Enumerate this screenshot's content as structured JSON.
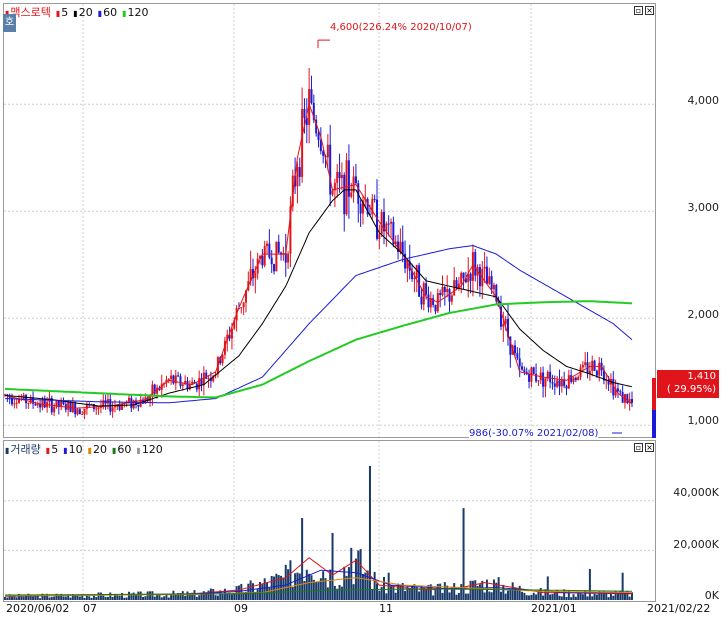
{
  "price_panel": {
    "legend": [
      {
        "label": "맥스로텍",
        "color": "#e0141b"
      },
      {
        "label": "5",
        "color": "#e0141b"
      },
      {
        "label": "20",
        "color": "#000000"
      },
      {
        "label": "60",
        "color": "#1a1ad8"
      },
      {
        "label": "120",
        "color": "#22cc22"
      }
    ],
    "y_ticks": [
      "4,000",
      "3,000",
      "2,000",
      "1,000"
    ],
    "high_annotation": "4,600(226.24% 2020/10/07)",
    "low_annotation": "986(-30.07% 2021/02/08)",
    "current_price": "1,410",
    "current_change": "( 29.95%)",
    "corner_tab": "호"
  },
  "volume_panel": {
    "legend": [
      {
        "label": "거래량",
        "color": "#1a3a6a"
      },
      {
        "label": "5",
        "color": "#e0141b"
      },
      {
        "label": "10",
        "color": "#1a1ad8"
      },
      {
        "label": "20",
        "color": "#e08a00"
      },
      {
        "label": "60",
        "color": "#1a7a1a"
      },
      {
        "label": "120",
        "color": "#9a9a9a"
      }
    ],
    "y_ticks": [
      "40,000K",
      "20,000K",
      "0K"
    ]
  },
  "x_axis": {
    "labels": [
      "2020/06/02",
      "07",
      "09",
      "11",
      "2021/01",
      "2021/02/22"
    ]
  },
  "colors": {
    "up": "#e0141b",
    "down": "#1a1ad8",
    "ma5": "#e0141b",
    "ma20": "#000000",
    "ma60": "#1a1ad8",
    "ma120": "#22cc22",
    "volume": "#1a3a6a"
  },
  "chart_data": {
    "type": "candlestick",
    "ylim": [
      900,
      4900
    ],
    "volume_ylim": [
      0,
      58000
    ],
    "series": [
      {
        "name": "5",
        "keypoints": [
          [
            0,
            1280
          ],
          [
            15,
            1200
          ],
          [
            30,
            1160
          ],
          [
            45,
            1180
          ],
          [
            60,
            1240
          ],
          [
            70,
            1420
          ],
          [
            80,
            1380
          ],
          [
            90,
            1500
          ],
          [
            100,
            2100
          ],
          [
            110,
            2600
          ],
          [
            120,
            2600
          ],
          [
            125,
            3500
          ],
          [
            130,
            4000
          ],
          [
            135,
            3700
          ],
          [
            140,
            3200
          ],
          [
            150,
            3250
          ],
          [
            160,
            2900
          ],
          [
            170,
            2600
          ],
          [
            180,
            2200
          ],
          [
            185,
            2150
          ],
          [
            195,
            2300
          ],
          [
            200,
            2500
          ],
          [
            210,
            2200
          ],
          [
            220,
            1500
          ],
          [
            230,
            1450
          ],
          [
            240,
            1420
          ],
          [
            250,
            1550
          ],
          [
            255,
            1550
          ],
          [
            262,
            1300
          ],
          [
            268,
            1200
          ]
        ]
      },
      {
        "name": "20",
        "keypoints": [
          [
            0,
            1280
          ],
          [
            20,
            1240
          ],
          [
            40,
            1180
          ],
          [
            55,
            1190
          ],
          [
            70,
            1300
          ],
          [
            85,
            1380
          ],
          [
            100,
            1650
          ],
          [
            110,
            1950
          ],
          [
            120,
            2300
          ],
          [
            130,
            2800
          ],
          [
            140,
            3100
          ],
          [
            145,
            3200
          ],
          [
            150,
            3200
          ],
          [
            160,
            2800
          ],
          [
            170,
            2600
          ],
          [
            180,
            2350
          ],
          [
            190,
            2300
          ],
          [
            200,
            2250
          ],
          [
            210,
            2200
          ],
          [
            220,
            1900
          ],
          [
            230,
            1700
          ],
          [
            240,
            1550
          ],
          [
            250,
            1480
          ],
          [
            260,
            1400
          ],
          [
            268,
            1360
          ]
        ]
      },
      {
        "name": "60",
        "keypoints": [
          [
            0,
            1250
          ],
          [
            40,
            1220
          ],
          [
            70,
            1210
          ],
          [
            90,
            1250
          ],
          [
            110,
            1450
          ],
          [
            130,
            1950
          ],
          [
            150,
            2400
          ],
          [
            170,
            2550
          ],
          [
            190,
            2650
          ],
          [
            200,
            2680
          ],
          [
            210,
            2600
          ],
          [
            220,
            2450
          ],
          [
            240,
            2200
          ],
          [
            260,
            1950
          ],
          [
            268,
            1800
          ]
        ]
      },
      {
        "name": "120",
        "keypoints": [
          [
            0,
            1340
          ],
          [
            40,
            1300
          ],
          [
            70,
            1270
          ],
          [
            90,
            1260
          ],
          [
            110,
            1380
          ],
          [
            130,
            1600
          ],
          [
            150,
            1800
          ],
          [
            170,
            1930
          ],
          [
            190,
            2050
          ],
          [
            210,
            2130
          ],
          [
            230,
            2150
          ],
          [
            250,
            2160
          ],
          [
            268,
            2140
          ]
        ]
      }
    ],
    "volume_series": [
      {
        "name": "5",
        "keypoints": [
          [
            0,
            1500
          ],
          [
            80,
            2500
          ],
          [
            100,
            4000
          ],
          [
            120,
            9000
          ],
          [
            130,
            17000
          ],
          [
            140,
            10000
          ],
          [
            150,
            16000
          ],
          [
            160,
            6000
          ],
          [
            180,
            4000
          ],
          [
            195,
            5000
          ],
          [
            205,
            7000
          ],
          [
            230,
            3000
          ],
          [
            268,
            2500
          ]
        ]
      },
      {
        "name": "10",
        "keypoints": [
          [
            0,
            1600
          ],
          [
            80,
            2400
          ],
          [
            100,
            3500
          ],
          [
            120,
            6000
          ],
          [
            135,
            12000
          ],
          [
            150,
            11000
          ],
          [
            165,
            6000
          ],
          [
            190,
            4500
          ],
          [
            210,
            5000
          ],
          [
            240,
            3000
          ],
          [
            268,
            2800
          ]
        ]
      },
      {
        "name": "20",
        "keypoints": [
          [
            0,
            1700
          ],
          [
            80,
            2200
          ],
          [
            110,
            3000
          ],
          [
            130,
            7000
          ],
          [
            150,
            9000
          ],
          [
            170,
            6000
          ],
          [
            195,
            5000
          ],
          [
            230,
            3500
          ],
          [
            268,
            3000
          ]
        ]
      },
      {
        "name": "60",
        "keypoints": [
          [
            0,
            2000
          ],
          [
            100,
            2500
          ],
          [
            140,
            4000
          ],
          [
            180,
            4500
          ],
          [
            230,
            4000
          ],
          [
            268,
            3500
          ]
        ]
      }
    ]
  }
}
